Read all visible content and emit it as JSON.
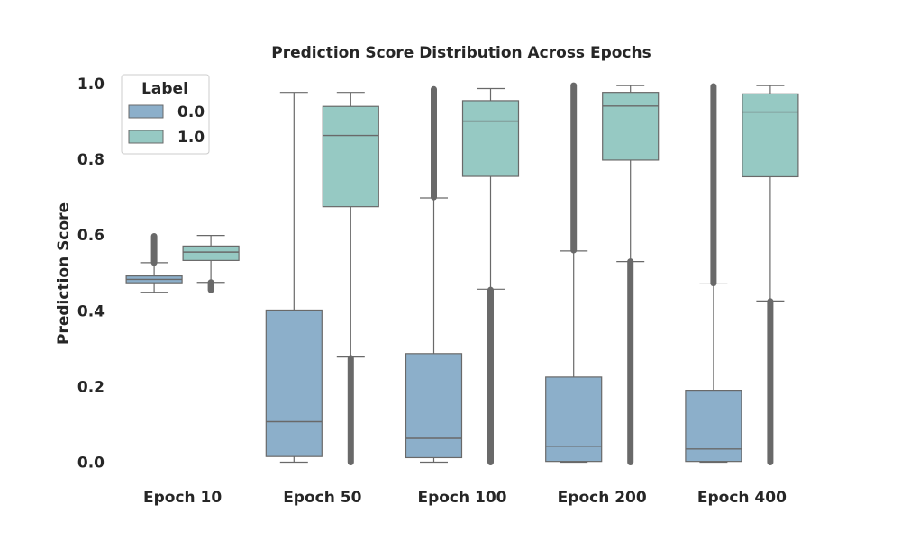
{
  "chart_data": {
    "type": "box",
    "title": "Prediction Score Distribution Across Epochs",
    "xlabel": "",
    "ylabel": "Prediction Score",
    "ylim": [
      -0.03,
      1.03
    ],
    "yticks": [
      0.0,
      0.2,
      0.4,
      0.6,
      0.8,
      1.0
    ],
    "ytick_labels": [
      "0.0",
      "0.2",
      "0.4",
      "0.6",
      "0.8",
      "1.0"
    ],
    "categories": [
      "Epoch 10",
      "Epoch 50",
      "Epoch 100",
      "Epoch 200",
      "Epoch 400"
    ],
    "grid": false,
    "legend": {
      "title": "Label",
      "position": "top-left"
    },
    "outlier_color": "#696969",
    "series": [
      {
        "name": "0.0",
        "color": "#8cafca",
        "boxes": [
          {
            "whisker_low": 0.449,
            "q1": 0.474,
            "median": 0.483,
            "q3": 0.492,
            "whisker_high": 0.527,
            "outliers": [
              [
                0.527,
                0.597
              ]
            ]
          },
          {
            "whisker_low": 0.0,
            "q1": 0.015,
            "median": 0.107,
            "q3": 0.402,
            "whisker_high": 0.977,
            "outliers": []
          },
          {
            "whisker_low": 0.0,
            "q1": 0.012,
            "median": 0.063,
            "q3": 0.287,
            "whisker_high": 0.698,
            "outliers": [
              [
                0.7,
                0.985
              ]
            ]
          },
          {
            "whisker_low": 0.0,
            "q1": 0.002,
            "median": 0.042,
            "q3": 0.225,
            "whisker_high": 0.558,
            "outliers": [
              [
                0.56,
                0.995
              ]
            ]
          },
          {
            "whisker_low": 0.0,
            "q1": 0.002,
            "median": 0.035,
            "q3": 0.19,
            "whisker_high": 0.471,
            "outliers": [
              [
                0.473,
                0.993
              ]
            ]
          }
        ]
      },
      {
        "name": "1.0",
        "color": "#96c9c3",
        "boxes": [
          {
            "whisker_low": 0.475,
            "q1": 0.533,
            "median": 0.555,
            "q3": 0.571,
            "whisker_high": 0.599,
            "outliers": [
              [
                0.455,
                0.475
              ]
            ]
          },
          {
            "whisker_low": 0.278,
            "q1": 0.675,
            "median": 0.863,
            "q3": 0.94,
            "whisker_high": 0.977,
            "outliers": [
              [
                0.0,
                0.275
              ]
            ]
          },
          {
            "whisker_low": 0.457,
            "q1": 0.755,
            "median": 0.901,
            "q3": 0.955,
            "whisker_high": 0.987,
            "outliers": [
              [
                0.0,
                0.455
              ]
            ]
          },
          {
            "whisker_low": 0.53,
            "q1": 0.798,
            "median": 0.941,
            "q3": 0.977,
            "whisker_high": 0.995,
            "outliers": [
              [
                0.0,
                0.53
              ]
            ]
          },
          {
            "whisker_low": 0.426,
            "q1": 0.754,
            "median": 0.925,
            "q3": 0.973,
            "whisker_high": 0.995,
            "outliers": [
              [
                0.0,
                0.425
              ]
            ]
          }
        ]
      }
    ]
  }
}
